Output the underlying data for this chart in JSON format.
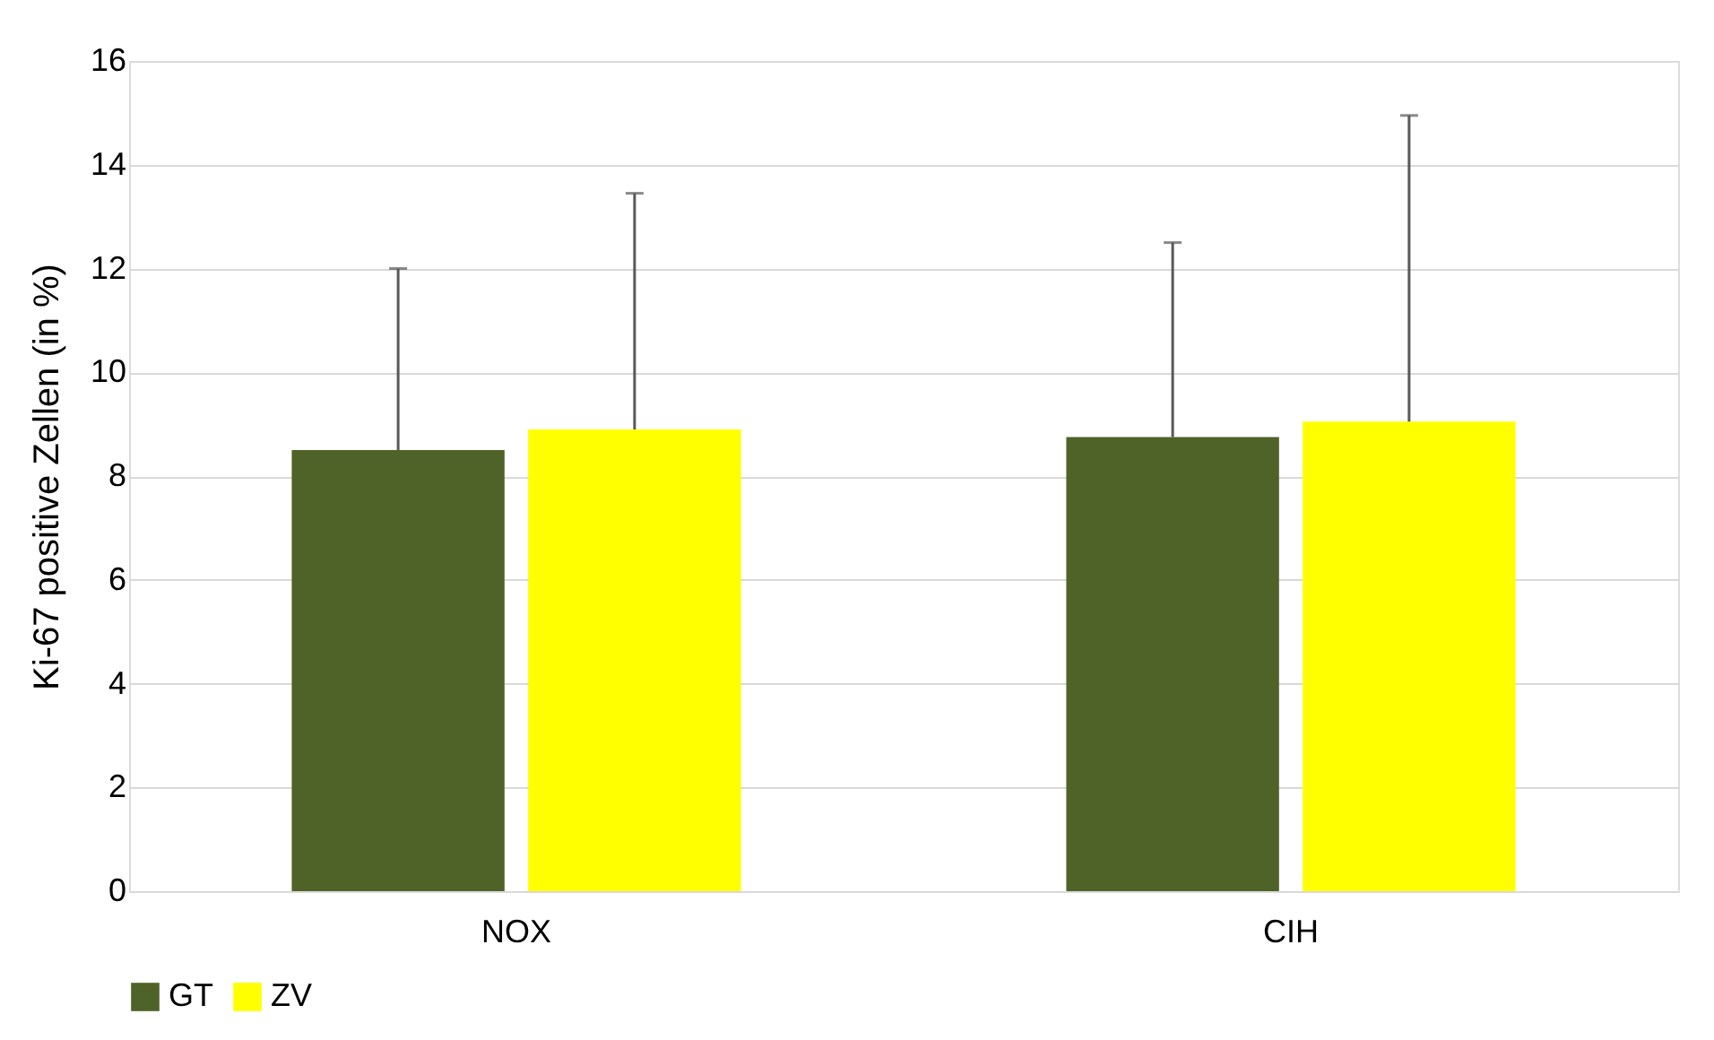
{
  "chart_data": {
    "type": "bar",
    "ylabel": "Ki-67 positive Zellen (in %)",
    "categories": [
      "NOX",
      "CIH"
    ],
    "series": [
      {
        "name": "GT",
        "color": "#4f6228",
        "values": [
          8.5,
          8.75
        ],
        "errors": [
          [
            8.5,
            12.0
          ],
          [
            8.75,
            12.5
          ]
        ]
      },
      {
        "name": "ZV",
        "color": "#ffff00",
        "values": [
          8.9,
          9.05
        ],
        "errors": [
          [
            8.9,
            13.45
          ],
          [
            9.05,
            14.95
          ]
        ]
      }
    ],
    "ylim": [
      0,
      16
    ],
    "yticks": [
      0,
      2,
      4,
      6,
      8,
      10,
      12,
      14,
      16
    ],
    "grid": "y",
    "legend": "bottom"
  }
}
